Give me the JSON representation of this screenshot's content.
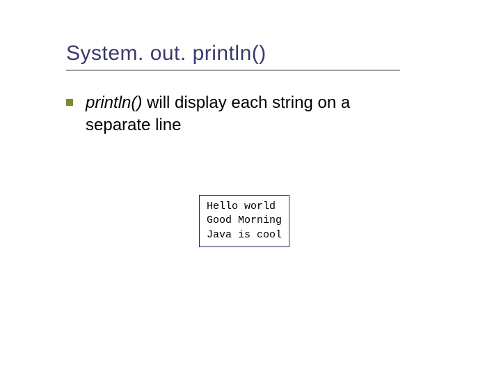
{
  "slide": {
    "title": "System. out. println()",
    "title_color": "#3a3a6a",
    "title_fontsize": 30,
    "underline_color": "#a0a0a0",
    "underline_width": 480,
    "bullet_color": "#768c3a",
    "body": {
      "italic_part": "println()",
      "rest_line1": " will display each string on a",
      "line2": "separate line",
      "fontsize": 24,
      "text_color": "#000000"
    },
    "code_box": {
      "lines": [
        "Hello world",
        "Good Morning",
        "Java is cool"
      ],
      "border_color": "#2a2a6a",
      "font_family": "Courier New",
      "fontsize": 15
    },
    "background_color": "#ffffff"
  }
}
